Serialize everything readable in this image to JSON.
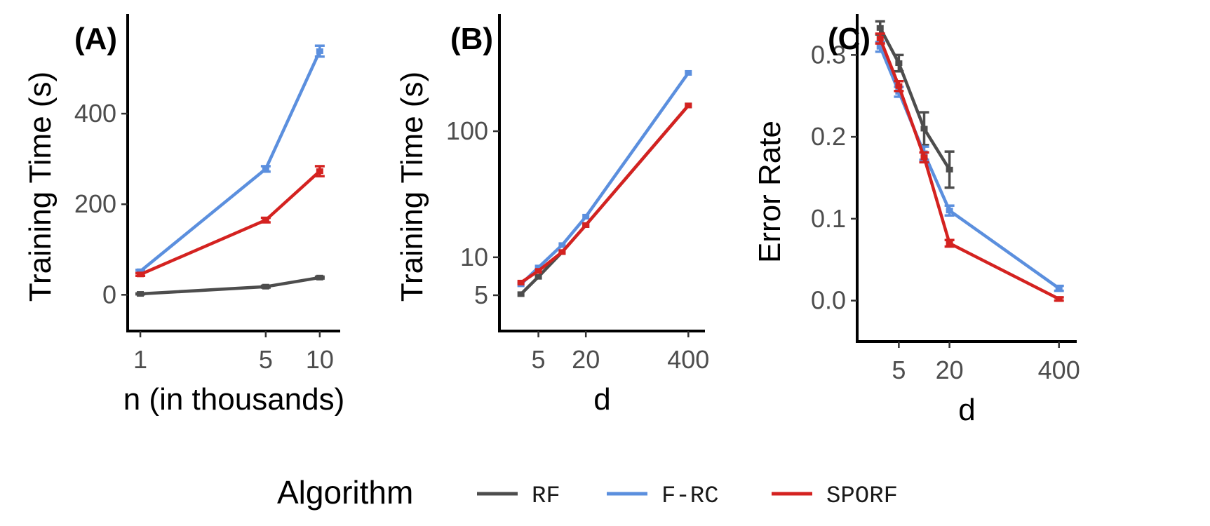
{
  "colors": {
    "RF": "#4d4d4d",
    "F-RC": "#5b8fde",
    "SPORF": "#d42220",
    "axis": "#000000",
    "tick_text": "#4d4d4d"
  },
  "legend": {
    "title": "Algorithm",
    "entries": [
      "RF",
      "F-RC",
      "SPORF"
    ],
    "placement": "bottom"
  },
  "chart_data": [
    {
      "type": "line",
      "panel_label": "(A)",
      "xlabel": "n (in thousands)",
      "ylabel": "Training Time (s)",
      "xscale": "log",
      "yscale": "linear",
      "xlim": [
        0.85,
        13
      ],
      "ylim": [
        -80,
        620
      ],
      "xticks": [
        1,
        5,
        10
      ],
      "xtick_labels": [
        "1",
        "5",
        "10"
      ],
      "yticks": [
        0,
        200,
        400
      ],
      "ytick_labels": [
        "0",
        "200",
        "400"
      ],
      "grid": false,
      "series": [
        {
          "name": "RF",
          "x": [
            1,
            5,
            10
          ],
          "y": [
            2,
            18,
            38
          ],
          "err": [
            1,
            2,
            2
          ]
        },
        {
          "name": "F-RC",
          "x": [
            1,
            5,
            10
          ],
          "y": [
            52,
            278,
            538
          ],
          "err": [
            3,
            6,
            12
          ]
        },
        {
          "name": "SPORF",
          "x": [
            1,
            5,
            10
          ],
          "y": [
            45,
            165,
            273
          ],
          "err": [
            3,
            5,
            11
          ]
        }
      ]
    },
    {
      "type": "line",
      "panel_label": "(B)",
      "xlabel": "d",
      "ylabel": "Training Time (s)",
      "xscale": "log",
      "yscale": "log",
      "xlim": [
        1.6,
        650
      ],
      "ylim": [
        2.6,
        850
      ],
      "xticks": [
        5,
        20,
        400
      ],
      "xtick_labels": [
        "5",
        "20",
        "400"
      ],
      "yticks": [
        5,
        10,
        100
      ],
      "ytick_labels": [
        "5",
        "10",
        "100"
      ],
      "grid": false,
      "series": [
        {
          "name": "RF",
          "x": [
            3,
            5,
            10,
            20,
            400
          ],
          "y": [
            5.1,
            7,
            11,
            18,
            160
          ]
        },
        {
          "name": "F-RC",
          "x": [
            3,
            5,
            10,
            20,
            400
          ],
          "y": [
            6.1,
            8.3,
            12.5,
            21,
            290
          ]
        },
        {
          "name": "SPORF",
          "x": [
            3,
            5,
            10,
            20,
            400
          ],
          "y": [
            6.3,
            7.8,
            11,
            18,
            160
          ]
        }
      ]
    },
    {
      "type": "line",
      "panel_label": "(C)",
      "xlabel": "d",
      "ylabel": "Error Rate",
      "xscale": "log",
      "yscale": "linear",
      "xlim": [
        1.6,
        650
      ],
      "ylim": [
        -0.05,
        0.35
      ],
      "xticks": [
        5,
        20,
        400
      ],
      "xtick_labels": [
        "5",
        "20",
        "400"
      ],
      "yticks": [
        0,
        0.1,
        0.2,
        0.3
      ],
      "ytick_labels": [
        "0.0",
        "0.1",
        "0.2",
        "0.3"
      ],
      "grid": false,
      "series": [
        {
          "name": "RF",
          "x": [
            3,
            5,
            10,
            20
          ],
          "y": [
            0.333,
            0.29,
            0.21,
            0.16
          ],
          "err": [
            0.008,
            0.01,
            0.02,
            0.022
          ]
        },
        {
          "name": "F-RC",
          "x": [
            3,
            5,
            10,
            20,
            400
          ],
          "y": [
            0.31,
            0.255,
            0.18,
            0.11,
            0.015
          ],
          "err": [
            0.006,
            0.006,
            0.008,
            0.006,
            0.003
          ]
        },
        {
          "name": "SPORF",
          "x": [
            3,
            5,
            10,
            20,
            400
          ],
          "y": [
            0.32,
            0.262,
            0.175,
            0.07,
            0.002
          ],
          "err": [
            0.006,
            0.006,
            0.006,
            0.004,
            0.002
          ]
        }
      ]
    }
  ]
}
